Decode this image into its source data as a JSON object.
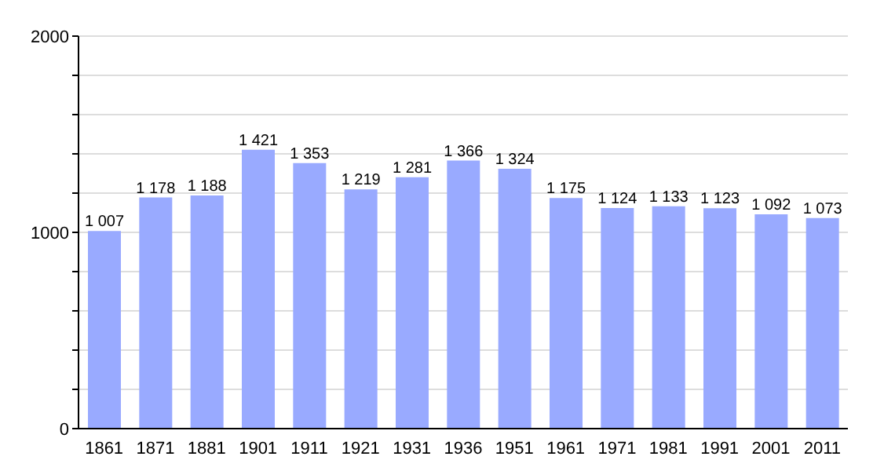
{
  "chart_data": {
    "type": "bar",
    "categories": [
      "1861",
      "1871",
      "1881",
      "1901",
      "1911",
      "1921",
      "1931",
      "1936",
      "1951",
      "1961",
      "1971",
      "1981",
      "1991",
      "2001",
      "2011"
    ],
    "values": [
      1007,
      1178,
      1188,
      1421,
      1353,
      1219,
      1281,
      1366,
      1324,
      1175,
      1124,
      1133,
      1123,
      1092,
      1073
    ],
    "value_labels": [
      "1 007",
      "1 178",
      "1 188",
      "1 421",
      "1 353",
      "1 219",
      "1 281",
      "1 366",
      "1 324",
      "1 175",
      "1 124",
      "1 133",
      "1 123",
      "1 092",
      "1 073"
    ],
    "color": "#99aaff",
    "ylim": [
      0,
      2000
    ],
    "yticks": [
      0,
      {
        "value": 200,
        "label": null
      },
      {
        "value": 400,
        "label": null
      },
      {
        "value": 600,
        "label": null
      },
      {
        "value": 800,
        "label": null
      },
      1000,
      {
        "value": 1200,
        "label": null
      },
      {
        "value": 1400,
        "label": null
      },
      {
        "value": 1600,
        "label": null
      },
      {
        "value": 1800,
        "label": null
      },
      2000
    ],
    "grid": "y"
  }
}
